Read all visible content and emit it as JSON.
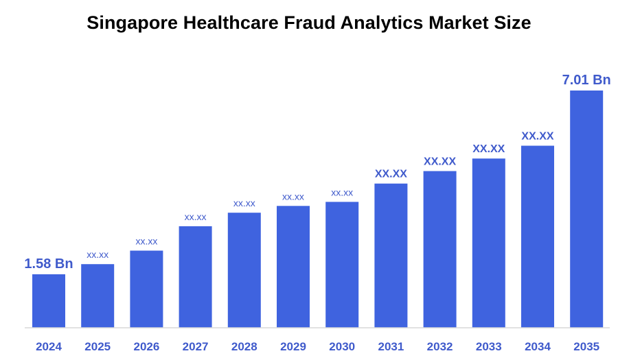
{
  "chart_data": {
    "type": "bar",
    "title": "Singapore Healthcare Fraud Analytics Market Size",
    "xlabel": "",
    "ylabel": "",
    "categories": [
      "2024",
      "2025",
      "2026",
      "2027",
      "2028",
      "2029",
      "2030",
      "2031",
      "2032",
      "2033",
      "2034",
      "2035"
    ],
    "values": [
      1.58,
      1.88,
      2.28,
      3.0,
      3.4,
      3.6,
      3.72,
      4.26,
      4.63,
      5.0,
      5.38,
      7.01
    ],
    "data_labels": [
      "1.58 Bn",
      "xx.xx",
      "xx.xx",
      "xx.xx",
      "xx.xx",
      "xx.xx",
      "xx.xx",
      "XX.XX",
      "XX.XX",
      "XX.XX",
      "XX.XX",
      "7.01 Bn"
    ],
    "ylim": [
      0,
      7.01
    ],
    "grid": false,
    "bar_color": "#3f63df",
    "label_color": "#3f5acb"
  }
}
